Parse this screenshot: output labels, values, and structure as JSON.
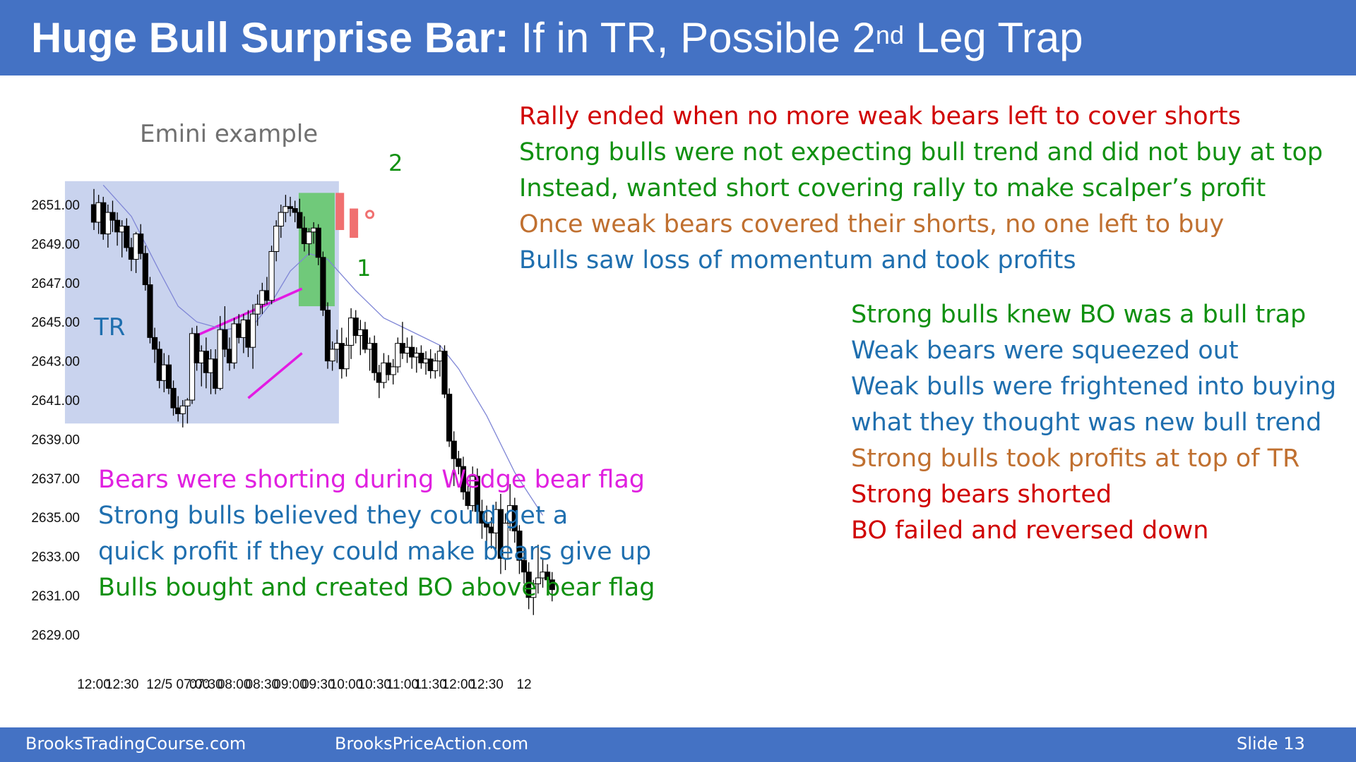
{
  "slide": {
    "title_bold": "Huge Bull Surprise Bar:",
    "title_rest_a": " If in TR, Possible 2",
    "title_sup": "nd",
    "title_rest_b": " Leg Trap",
    "footer_left": "BrooksTradingCourse.com",
    "footer_center": "BrooksPriceAction.com",
    "footer_right": "Slide  13"
  },
  "colors": {
    "header_blue": "#4472C4",
    "tr_box": "#C9D3EE",
    "breakout_green": "#70C97A",
    "wedge_magenta": "#E31BE3",
    "red_bar": "#F07070",
    "ema_line": "#7F86D6",
    "red_text": "#D00000",
    "green_text": "#109010",
    "orange_text": "#C07030",
    "blue_text": "#1F6FAF",
    "magenta_text": "#E020E0"
  },
  "chart_labels": {
    "example": "Emini example",
    "tr": "TR",
    "leg1": "1",
    "leg2": "2"
  },
  "annotations": {
    "top_block": [
      {
        "text": "Rally ended when no more weak bears left to cover shorts",
        "color": "#D00000"
      },
      {
        "text": "Strong bulls were not expecting bull trend and did not buy at top",
        "color": "#109010"
      },
      {
        "text": "Instead, wanted short covering rally to make scalper’s profit",
        "color": "#109010"
      },
      {
        "text": "Once weak bears covered their shorts, no one left to buy",
        "color": "#C07030"
      },
      {
        "text": "Bulls saw loss of momentum and took profits",
        "color": "#1F6FAF"
      }
    ],
    "right_block": [
      {
        "text": "Strong bulls knew BO was a bull trap",
        "color": "#109010"
      },
      {
        "text": "Weak bears were squeezed out",
        "color": "#1F6FAF"
      },
      {
        "text": "Weak bulls were frightened into buying",
        "color": "#1F6FAF"
      },
      {
        "text": "what they thought was new bull trend",
        "color": "#1F6FAF"
      },
      {
        "text": "Strong bulls took profits at top of TR",
        "color": "#C07030"
      },
      {
        "text": "Strong bears shorted",
        "color": "#D00000"
      },
      {
        "text": "BO failed and reversed down",
        "color": "#D00000"
      }
    ],
    "bottom_block": [
      {
        "text": "Bears were shorting during Wedge bear flag",
        "color": "#E020E0"
      },
      {
        "text": "Strong bulls believed they could get a",
        "color": "#1F6FAF"
      },
      {
        "text": "quick profit if they could make bears give up",
        "color": "#1F6FAF"
      },
      {
        "text": "Bulls bought and created BO above bear flag",
        "color": "#109010"
      }
    ]
  },
  "chart_data": {
    "type": "candlestick",
    "instrument": "Emini",
    "y_ticks": [
      "2651.00",
      "2649.00",
      "2647.00",
      "2645.00",
      "2643.00",
      "2641.00",
      "2639.00",
      "2637.00",
      "2635.00",
      "2633.00",
      "2631.00",
      "2629.00"
    ],
    "ylim": [
      2628.5,
      2652.5
    ],
    "x_ticks": [
      {
        "label": "12:00",
        "bar": 0
      },
      {
        "label": "12:30",
        "bar": 6
      },
      {
        "label": "12/5 07:00",
        "bar": 18
      },
      {
        "label": "07:30",
        "bar": 24
      },
      {
        "label": "08:00",
        "bar": 30
      },
      {
        "label": "08:30",
        "bar": 36
      },
      {
        "label": "09:00",
        "bar": 42
      },
      {
        "label": "09:30",
        "bar": 48
      },
      {
        "label": "10:00",
        "bar": 54
      },
      {
        "label": "10:30",
        "bar": 60
      },
      {
        "label": "11:00",
        "bar": 66
      },
      {
        "label": "11:30",
        "bar": 72
      },
      {
        "label": "12:00",
        "bar": 78
      },
      {
        "label": "12:30",
        "bar": 84
      },
      {
        "label": "12",
        "bar": 92
      }
    ],
    "bars_ohlc": [
      [
        2651.0,
        2651.8,
        2649.7,
        2650.1
      ],
      [
        2650.1,
        2651.5,
        2649.5,
        2651.1
      ],
      [
        2651.1,
        2651.4,
        2649.2,
        2649.5
      ],
      [
        2649.5,
        2651.0,
        2648.8,
        2650.6
      ],
      [
        2650.6,
        2651.2,
        2649.6,
        2650.2
      ],
      [
        2650.2,
        2650.6,
        2648.9,
        2649.6
      ],
      [
        2649.6,
        2650.2,
        2648.3,
        2649.9
      ],
      [
        2649.9,
        2650.3,
        2648.6,
        2648.8
      ],
      [
        2648.8,
        2649.3,
        2647.6,
        2648.2
      ],
      [
        2648.2,
        2649.6,
        2647.5,
        2649.5
      ],
      [
        2649.5,
        2650.0,
        2648.2,
        2648.5
      ],
      [
        2648.5,
        2648.9,
        2646.6,
        2646.9
      ],
      [
        2646.9,
        2647.3,
        2643.9,
        2644.2
      ],
      [
        2644.2,
        2644.7,
        2642.9,
        2643.6
      ],
      [
        2643.6,
        2644.0,
        2641.6,
        2642.0
      ],
      [
        2642.0,
        2643.4,
        2641.4,
        2642.8
      ],
      [
        2642.8,
        2643.3,
        2641.3,
        2641.6
      ],
      [
        2641.6,
        2642.0,
        2640.2,
        2640.6
      ],
      [
        2640.6,
        2641.2,
        2639.9,
        2640.3
      ],
      [
        2640.3,
        2641.0,
        2639.6,
        2640.7
      ],
      [
        2640.7,
        2641.1,
        2639.8,
        2641.0
      ],
      [
        2641.0,
        2644.7,
        2640.8,
        2644.4
      ],
      [
        2644.4,
        2644.8,
        2642.5,
        2642.9
      ],
      [
        2642.9,
        2643.8,
        2641.7,
        2643.5
      ],
      [
        2643.5,
        2644.2,
        2641.6,
        2642.4
      ],
      [
        2642.4,
        2643.6,
        2641.3,
        2643.1
      ],
      [
        2643.1,
        2643.6,
        2641.3,
        2641.6
      ],
      [
        2641.6,
        2645.3,
        2641.5,
        2644.6
      ],
      [
        2644.6,
        2645.8,
        2643.2,
        2643.6
      ],
      [
        2643.6,
        2644.2,
        2642.5,
        2642.9
      ],
      [
        2642.9,
        2645.2,
        2642.6,
        2644.9
      ],
      [
        2644.9,
        2645.4,
        2643.9,
        2644.2
      ],
      [
        2644.2,
        2645.4,
        2643.4,
        2645.1
      ],
      [
        2645.1,
        2645.6,
        2643.2,
        2643.7
      ],
      [
        2643.7,
        2645.9,
        2642.6,
        2645.4
      ],
      [
        2645.4,
        2646.4,
        2644.8,
        2645.9
      ],
      [
        2645.9,
        2647.0,
        2645.4,
        2646.6
      ],
      [
        2646.6,
        2647.3,
        2645.9,
        2646.1
      ],
      [
        2646.1,
        2648.9,
        2645.9,
        2648.6
      ],
      [
        2648.6,
        2650.2,
        2648.1,
        2649.9
      ],
      [
        2649.9,
        2651.0,
        2649.3,
        2650.6
      ],
      [
        2650.6,
        2651.5,
        2650.1,
        2650.9
      ],
      [
        2650.9,
        2651.4,
        2650.4,
        2650.8
      ],
      [
        2650.8,
        2651.2,
        2650.1,
        2650.6
      ],
      [
        2650.6,
        2651.3,
        2649.9,
        2649.8
      ],
      [
        2649.8,
        2650.4,
        2648.6,
        2649.0
      ],
      [
        2649.0,
        2649.8,
        2648.4,
        2649.6
      ],
      [
        2649.6,
        2650.1,
        2649.0,
        2649.8
      ],
      [
        2649.8,
        2650.0,
        2647.9,
        2648.3
      ],
      [
        2648.3,
        2648.6,
        2645.3,
        2645.6
      ],
      [
        2645.6,
        2646.0,
        2642.6,
        2643.0
      ],
      [
        2643.0,
        2644.0,
        2642.5,
        2643.6
      ],
      [
        2643.6,
        2644.6,
        2642.9,
        2643.9
      ],
      [
        2643.9,
        2644.7,
        2642.1,
        2642.6
      ],
      [
        2642.6,
        2644.2,
        2642.2,
        2643.8
      ],
      [
        2643.8,
        2645.7,
        2643.1,
        2645.2
      ],
      [
        2645.2,
        2645.6,
        2643.9,
        2644.3
      ],
      [
        2644.3,
        2645.1,
        2643.3,
        2644.6
      ],
      [
        2644.6,
        2645.0,
        2643.4,
        2643.6
      ],
      [
        2643.6,
        2644.2,
        2642.5,
        2643.9
      ],
      [
        2643.9,
        2644.3,
        2642.0,
        2642.4
      ],
      [
        2642.4,
        2642.8,
        2641.1,
        2641.9
      ],
      [
        2641.9,
        2643.4,
        2641.6,
        2642.9
      ],
      [
        2642.9,
        2643.3,
        2642.0,
        2642.3
      ],
      [
        2642.3,
        2643.1,
        2641.8,
        2642.7
      ],
      [
        2642.7,
        2644.2,
        2642.4,
        2643.9
      ],
      [
        2643.9,
        2645.0,
        2643.1,
        2643.4
      ],
      [
        2643.4,
        2644.2,
        2642.9,
        2643.7
      ],
      [
        2643.7,
        2644.3,
        2642.6,
        2643.2
      ],
      [
        2643.2,
        2643.7,
        2642.4,
        2643.4
      ],
      [
        2643.4,
        2643.8,
        2642.6,
        2642.9
      ],
      [
        2642.9,
        2643.5,
        2642.3,
        2643.1
      ],
      [
        2643.1,
        2643.6,
        2642.1,
        2642.5
      ],
      [
        2642.5,
        2643.4,
        2642.1,
        2643.0
      ],
      [
        2643.0,
        2643.8,
        2642.2,
        2643.5
      ],
      [
        2643.5,
        2643.8,
        2641.1,
        2641.3
      ],
      [
        2641.3,
        2641.6,
        2638.6,
        2638.9
      ],
      [
        2638.9,
        2639.4,
        2636.6,
        2638.0
      ],
      [
        2638.0,
        2638.4,
        2637.2,
        2637.6
      ],
      [
        2637.6,
        2638.1,
        2635.9,
        2636.3
      ],
      [
        2636.3,
        2637.0,
        2635.4,
        2635.6
      ],
      [
        2635.6,
        2637.6,
        2635.3,
        2637.1
      ],
      [
        2637.1,
        2637.5,
        2634.9,
        2635.3
      ],
      [
        2635.3,
        2635.9,
        2633.9,
        2634.7
      ],
      [
        2634.7,
        2635.6,
        2633.0,
        2634.5
      ],
      [
        2634.5,
        2635.0,
        2633.4,
        2634.2
      ],
      [
        2634.2,
        2635.8,
        2633.1,
        2635.4
      ],
      [
        2635.4,
        2636.2,
        2632.1,
        2632.9
      ],
      [
        2632.9,
        2635.2,
        2632.3,
        2634.7
      ],
      [
        2634.7,
        2636.7,
        2634.3,
        2635.6
      ],
      [
        2635.6,
        2636.0,
        2633.7,
        2634.3
      ],
      [
        2634.3,
        2634.6,
        2632.1,
        2632.8
      ],
      [
        2632.8,
        2633.4,
        2631.6,
        2632.2
      ],
      [
        2632.2,
        2632.7,
        2630.3,
        2630.9
      ],
      [
        2630.9,
        2631.8,
        2630.0,
        2631.6
      ],
      [
        2631.6,
        2633.6,
        2631.1,
        2631.9
      ],
      [
        2631.9,
        2632.9,
        2631.4,
        2632.2
      ],
      [
        2632.2,
        2632.6,
        2631.4,
        2631.8
      ],
      [
        2631.8,
        2632.2,
        2630.7,
        2631.3
      ]
    ],
    "ema": [
      [
        2,
        2652.0
      ],
      [
        8,
        2650.4
      ],
      [
        14,
        2647.6
      ],
      [
        18,
        2645.8
      ],
      [
        22,
        2645.0
      ],
      [
        28,
        2644.6
      ],
      [
        34,
        2644.8
      ],
      [
        38,
        2646.0
      ],
      [
        42,
        2647.6
      ],
      [
        46,
        2648.5
      ],
      [
        50,
        2648.2
      ],
      [
        56,
        2646.6
      ],
      [
        62,
        2645.2
      ],
      [
        68,
        2644.5
      ],
      [
        74,
        2643.8
      ],
      [
        78,
        2642.6
      ],
      [
        84,
        2640.2
      ],
      [
        90,
        2637.3
      ],
      [
        96,
        2635.1
      ]
    ]
  }
}
